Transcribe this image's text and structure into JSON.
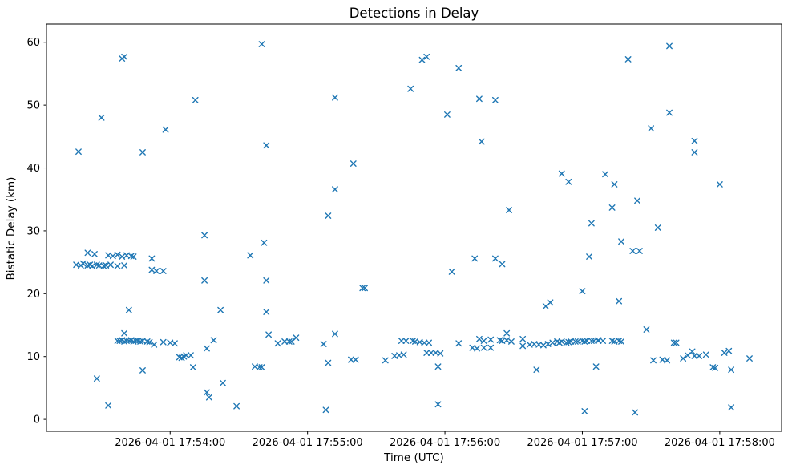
{
  "title": "Detections in Delay",
  "chart_data": {
    "type": "scatter",
    "title": "Detections in Delay",
    "xlabel": "Time (UTC)",
    "ylabel": "Bistatic Delay (km)",
    "date": "2026-04-01",
    "marker": "x",
    "marker_color": "#1f77b4",
    "background_color": "#ffffff",
    "grid": false,
    "legend": false,
    "ylim": [
      -1.9,
      62.9
    ],
    "y_ticks": [
      0,
      10,
      20,
      30,
      40,
      50,
      60
    ],
    "x_ticks_time": [
      "17:54:00",
      "17:55:00",
      "17:56:00",
      "17:57:00",
      "17:58:00"
    ],
    "x_tick_labels": [
      "2026-04-01 17:54:00",
      "2026-04-01 17:55:00",
      "2026-04-01 17:56:00",
      "2026-04-01 17:57:00",
      "2026-04-01 17:58:00"
    ],
    "xlim_time": [
      "17:53:06",
      "17:58:27"
    ],
    "points": [
      [
        "17:53:19",
        24.6
      ],
      [
        "17:53:20",
        42.6
      ],
      [
        "17:53:21",
        24.5
      ],
      [
        "17:53:22",
        24.8
      ],
      [
        "17:53:24",
        26.5
      ],
      [
        "17:53:24",
        24.5
      ],
      [
        "17:53:25",
        24.6
      ],
      [
        "17:53:26",
        24.4
      ],
      [
        "17:53:27",
        26.3
      ],
      [
        "17:53:28",
        24.6
      ],
      [
        "17:53:28",
        6.5
      ],
      [
        "17:53:29",
        24.5
      ],
      [
        "17:53:30",
        48.0
      ],
      [
        "17:53:31",
        24.4
      ],
      [
        "17:53:32",
        24.5
      ],
      [
        "17:53:33",
        26.1
      ],
      [
        "17:53:33",
        2.2
      ],
      [
        "17:53:34",
        24.6
      ],
      [
        "17:53:35",
        26.0
      ],
      [
        "17:53:37",
        26.2
      ],
      [
        "17:53:37",
        24.4
      ],
      [
        "17:53:37",
        12.5
      ],
      [
        "17:53:38",
        12.5
      ],
      [
        "17:53:39",
        57.4
      ],
      [
        "17:53:39",
        25.9
      ],
      [
        "17:53:39",
        12.6
      ],
      [
        "17:53:40",
        57.7
      ],
      [
        "17:53:40",
        24.5
      ],
      [
        "17:53:40",
        13.7
      ],
      [
        "17:53:40",
        12.4
      ],
      [
        "17:53:41",
        26.1
      ],
      [
        "17:53:41",
        12.5
      ],
      [
        "17:53:42",
        17.4
      ],
      [
        "17:53:42",
        12.5
      ],
      [
        "17:53:43",
        26.0
      ],
      [
        "17:53:43",
        12.6
      ],
      [
        "17:53:44",
        25.9
      ],
      [
        "17:53:44",
        12.4
      ],
      [
        "17:53:45",
        12.5
      ],
      [
        "17:53:46",
        12.5
      ],
      [
        "17:53:47",
        12.4
      ],
      [
        "17:53:48",
        42.5
      ],
      [
        "17:53:48",
        12.5
      ],
      [
        "17:53:48",
        7.8
      ],
      [
        "17:53:50",
        12.4
      ],
      [
        "17:53:51",
        12.3
      ],
      [
        "17:53:52",
        25.6
      ],
      [
        "17:53:52",
        23.8
      ],
      [
        "17:53:53",
        11.9
      ],
      [
        "17:53:54",
        23.6
      ],
      [
        "17:53:57",
        23.6
      ],
      [
        "17:53:57",
        12.3
      ],
      [
        "17:53:58",
        46.1
      ],
      [
        "17:54:00",
        12.2
      ],
      [
        "17:54:02",
        12.1
      ],
      [
        "17:54:04",
        9.9
      ],
      [
        "17:54:05",
        9.8
      ],
      [
        "17:54:06",
        10.0
      ],
      [
        "17:54:07",
        10.2
      ],
      [
        "17:54:09",
        10.2
      ],
      [
        "17:54:10",
        8.3
      ],
      [
        "17:54:11",
        50.8
      ],
      [
        "17:54:15",
        29.3
      ],
      [
        "17:54:15",
        22.1
      ],
      [
        "17:54:16",
        11.3
      ],
      [
        "17:54:16",
        4.3
      ],
      [
        "17:54:17",
        3.5
      ],
      [
        "17:54:19",
        12.6
      ],
      [
        "17:54:22",
        17.4
      ],
      [
        "17:54:23",
        5.8
      ],
      [
        "17:54:29",
        2.1
      ],
      [
        "17:54:35",
        26.1
      ],
      [
        "17:54:37",
        8.4
      ],
      [
        "17:54:39",
        8.3
      ],
      [
        "17:54:40",
        59.7
      ],
      [
        "17:54:40",
        8.3
      ],
      [
        "17:54:41",
        28.1
      ],
      [
        "17:54:42",
        43.6
      ],
      [
        "17:54:42",
        22.1
      ],
      [
        "17:54:42",
        17.1
      ],
      [
        "17:54:43",
        13.5
      ],
      [
        "17:54:47",
        12.1
      ],
      [
        "17:54:50",
        12.4
      ],
      [
        "17:54:52",
        12.4
      ],
      [
        "17:54:53",
        12.4
      ],
      [
        "17:54:55",
        13.0
      ],
      [
        "17:55:07",
        12.0
      ],
      [
        "17:55:08",
        1.5
      ],
      [
        "17:55:09",
        32.4
      ],
      [
        "17:55:09",
        9.0
      ],
      [
        "17:55:12",
        51.2
      ],
      [
        "17:55:12",
        36.6
      ],
      [
        "17:55:12",
        13.6
      ],
      [
        "17:55:19",
        9.5
      ],
      [
        "17:55:20",
        40.7
      ],
      [
        "17:55:21",
        9.5
      ],
      [
        "17:55:24",
        20.9
      ],
      [
        "17:55:25",
        20.9
      ],
      [
        "17:55:34",
        9.4
      ],
      [
        "17:55:38",
        10.1
      ],
      [
        "17:55:40",
        10.2
      ],
      [
        "17:55:41",
        12.5
      ],
      [
        "17:55:42",
        10.3
      ],
      [
        "17:55:43",
        12.5
      ],
      [
        "17:55:45",
        52.6
      ],
      [
        "17:55:46",
        12.5
      ],
      [
        "17:55:47",
        12.4
      ],
      [
        "17:55:49",
        12.3
      ],
      [
        "17:55:50",
        57.2
      ],
      [
        "17:55:51",
        12.2
      ],
      [
        "17:55:52",
        57.7
      ],
      [
        "17:55:52",
        10.6
      ],
      [
        "17:55:53",
        12.2
      ],
      [
        "17:55:54",
        10.6
      ],
      [
        "17:55:56",
        10.6
      ],
      [
        "17:55:57",
        8.4
      ],
      [
        "17:55:57",
        2.4
      ],
      [
        "17:55:58",
        10.5
      ],
      [
        "17:56:01",
        48.5
      ],
      [
        "17:56:03",
        23.5
      ],
      [
        "17:56:06",
        55.9
      ],
      [
        "17:56:06",
        12.1
      ],
      [
        "17:56:12",
        11.4
      ],
      [
        "17:56:13",
        25.6
      ],
      [
        "17:56:14",
        11.3
      ],
      [
        "17:56:15",
        51.0
      ],
      [
        "17:56:15",
        12.8
      ],
      [
        "17:56:16",
        44.2
      ],
      [
        "17:56:17",
        12.5
      ],
      [
        "17:56:17",
        11.4
      ],
      [
        "17:56:20",
        12.7
      ],
      [
        "17:56:20",
        11.4
      ],
      [
        "17:56:22",
        50.8
      ],
      [
        "17:56:22",
        25.6
      ],
      [
        "17:56:24",
        12.6
      ],
      [
        "17:56:25",
        24.7
      ],
      [
        "17:56:25",
        12.5
      ],
      [
        "17:56:27",
        12.6
      ],
      [
        "17:56:27",
        13.7
      ],
      [
        "17:56:28",
        33.3
      ],
      [
        "17:56:29",
        12.4
      ],
      [
        "17:56:34",
        12.8
      ],
      [
        "17:56:34",
        11.7
      ],
      [
        "17:56:37",
        11.9
      ],
      [
        "17:56:39",
        12.0
      ],
      [
        "17:56:40",
        7.9
      ],
      [
        "17:56:41",
        11.9
      ],
      [
        "17:56:43",
        11.8
      ],
      [
        "17:56:44",
        18.0
      ],
      [
        "17:56:45",
        12.0
      ],
      [
        "17:56:46",
        18.6
      ],
      [
        "17:56:47",
        12.2
      ],
      [
        "17:56:49",
        12.4
      ],
      [
        "17:56:50",
        12.2
      ],
      [
        "17:56:51",
        39.1
      ],
      [
        "17:56:51",
        12.4
      ],
      [
        "17:56:53",
        12.2
      ],
      [
        "17:56:54",
        37.8
      ],
      [
        "17:56:54",
        12.3
      ],
      [
        "17:56:55",
        12.4
      ],
      [
        "17:56:57",
        12.4
      ],
      [
        "17:56:58",
        12.4
      ],
      [
        "17:57:00",
        20.4
      ],
      [
        "17:57:00",
        12.5
      ],
      [
        "17:57:01",
        12.4
      ],
      [
        "17:57:01",
        1.3
      ],
      [
        "17:57:02",
        12.5
      ],
      [
        "17:57:03",
        25.9
      ],
      [
        "17:57:04",
        31.2
      ],
      [
        "17:57:04",
        12.5
      ],
      [
        "17:57:05",
        12.5
      ],
      [
        "17:57:06",
        8.4
      ],
      [
        "17:57:07",
        12.5
      ],
      [
        "17:57:07",
        12.6
      ],
      [
        "17:57:09",
        12.5
      ],
      [
        "17:57:10",
        39.0
      ],
      [
        "17:57:13",
        33.7
      ],
      [
        "17:57:13",
        12.5
      ],
      [
        "17:57:14",
        37.4
      ],
      [
        "17:57:14",
        12.4
      ],
      [
        "17:57:16",
        18.8
      ],
      [
        "17:57:16",
        12.5
      ],
      [
        "17:57:17",
        28.3
      ],
      [
        "17:57:17",
        12.4
      ],
      [
        "17:57:20",
        57.3
      ],
      [
        "17:57:22",
        26.8
      ],
      [
        "17:57:23",
        1.1
      ],
      [
        "17:57:24",
        34.8
      ],
      [
        "17:57:25",
        26.8
      ],
      [
        "17:57:28",
        14.3
      ],
      [
        "17:57:30",
        46.3
      ],
      [
        "17:57:31",
        9.4
      ],
      [
        "17:57:33",
        30.5
      ],
      [
        "17:57:35",
        9.5
      ],
      [
        "17:57:37",
        9.4
      ],
      [
        "17:57:38",
        59.4
      ],
      [
        "17:57:38",
        48.8
      ],
      [
        "17:57:40",
        12.2
      ],
      [
        "17:57:41",
        12.2
      ],
      [
        "17:57:44",
        9.7
      ],
      [
        "17:57:46",
        10.2
      ],
      [
        "17:57:48",
        10.8
      ],
      [
        "17:57:49",
        44.3
      ],
      [
        "17:57:49",
        42.5
      ],
      [
        "17:57:49",
        10.1
      ],
      [
        "17:57:51",
        10.1
      ],
      [
        "17:57:54",
        10.3
      ],
      [
        "17:57:57",
        8.3
      ],
      [
        "17:57:58",
        8.2
      ],
      [
        "17:58:00",
        37.4
      ],
      [
        "17:58:02",
        10.6
      ],
      [
        "17:58:04",
        10.9
      ],
      [
        "17:58:05",
        7.9
      ],
      [
        "17:58:05",
        1.9
      ],
      [
        "17:58:13",
        9.7
      ]
    ]
  }
}
